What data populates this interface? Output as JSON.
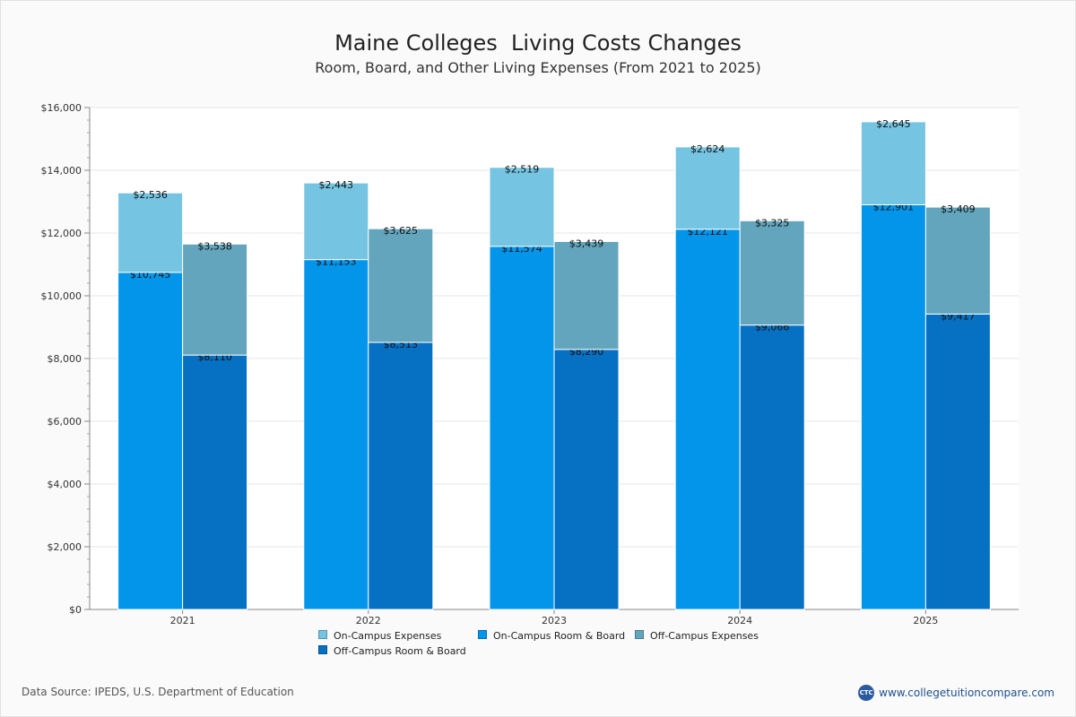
{
  "title": "Maine Colleges  Living Costs Changes",
  "subtitle": "Room, Board, and Other Living Expenses (From 2021 to 2025)",
  "footer": {
    "source": "Data Source: IPEDS, U.S. Department of Education",
    "brand": "www.collegetuitioncompare.com",
    "logo_text": "CTC"
  },
  "legend": [
    {
      "label": "On-Campus Expenses",
      "color": "#74c4e2"
    },
    {
      "label": "On-Campus Room & Board",
      "color": "#0295ea"
    },
    {
      "label": "Off-Campus Expenses",
      "color": "#62a5bd"
    },
    {
      "label": "Off-Campus Room & Board",
      "color": "#0670c2"
    }
  ],
  "chart_data": {
    "type": "bar",
    "stacked": true,
    "categories": [
      "2021",
      "2022",
      "2023",
      "2024",
      "2025"
    ],
    "ylim": [
      0,
      16000
    ],
    "yticks": [
      0,
      2000,
      4000,
      6000,
      8000,
      10000,
      12000,
      14000,
      16000
    ],
    "ytick_labels": [
      "$0",
      "$2,000",
      "$4,000",
      "$6,000",
      "$8,000",
      "$10,000",
      "$12,000",
      "$14,000",
      "$16,000"
    ],
    "grid": true,
    "legend_position": "bottom",
    "groups": [
      {
        "stack": "On-Campus",
        "segments": [
          {
            "name": "On-Campus Room & Board",
            "color": "#0295ea",
            "values": [
              10745,
              11153,
              11574,
              12121,
              12901
            ],
            "labels": [
              "$10,745",
              "$11,153",
              "$11,574",
              "$12,121",
              "$12,901"
            ]
          },
          {
            "name": "On-Campus Expenses",
            "color": "#74c4e2",
            "values": [
              2536,
              2443,
              2519,
              2624,
              2645
            ],
            "labels": [
              "$2,536",
              "$2,443",
              "$2,519",
              "$2,624",
              "$2,645"
            ]
          }
        ]
      },
      {
        "stack": "Off-Campus",
        "segments": [
          {
            "name": "Off-Campus Room & Board",
            "color": "#0670c2",
            "values": [
              8110,
              8513,
              8290,
              9066,
              9417
            ],
            "labels": [
              "$8,110",
              "$8,513",
              "$8,290",
              "$9,066",
              "$9,417"
            ]
          },
          {
            "name": "Off-Campus Expenses",
            "color": "#62a5bd",
            "values": [
              3538,
              3625,
              3439,
              3325,
              3409
            ],
            "labels": [
              "$3,538",
              "$3,625",
              "$3,439",
              "$3,325",
              "$3,409"
            ]
          }
        ]
      }
    ]
  }
}
